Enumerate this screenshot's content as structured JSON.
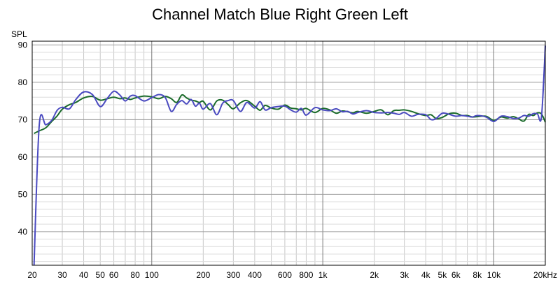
{
  "chart_data": {
    "type": "line",
    "title": "Channel Match Blue Right Green Left",
    "ylabel": "SPL",
    "xlabel": "",
    "xscale": "log",
    "xlim": [
      20,
      20000
    ],
    "ylim": [
      31,
      91
    ],
    "grid": true,
    "legend": "none",
    "y_ticks": [
      {
        "value": 90,
        "label": "90"
      },
      {
        "value": 80,
        "label": "80"
      },
      {
        "value": 70,
        "label": "70"
      },
      {
        "value": 60,
        "label": "60"
      },
      {
        "value": 50,
        "label": "50"
      },
      {
        "value": 40,
        "label": "40"
      }
    ],
    "x_ticks": [
      {
        "value": 20,
        "label": "20"
      },
      {
        "value": 30,
        "label": "30"
      },
      {
        "value": 40,
        "label": "40"
      },
      {
        "value": 50,
        "label": "50"
      },
      {
        "value": 60,
        "label": "60"
      },
      {
        "value": 80,
        "label": "80"
      },
      {
        "value": 100,
        "label": "100"
      },
      {
        "value": 200,
        "label": "200"
      },
      {
        "value": 300,
        "label": "300"
      },
      {
        "value": 400,
        "label": "400"
      },
      {
        "value": 600,
        "label": "600"
      },
      {
        "value": 800,
        "label": "800"
      },
      {
        "value": 1000,
        "label": "1k"
      },
      {
        "value": 2000,
        "label": "2k"
      },
      {
        "value": 3000,
        "label": "3k"
      },
      {
        "value": 4000,
        "label": "4k"
      },
      {
        "value": 5000,
        "label": "5k"
      },
      {
        "value": 6000,
        "label": "6k"
      },
      {
        "value": 8000,
        "label": "8k"
      },
      {
        "value": 10000,
        "label": "10k"
      },
      {
        "value": 20000,
        "label": "20kHz"
      }
    ],
    "series": [
      {
        "color": "#1a6b2a",
        "x": [
          20.5,
          22,
          24,
          26,
          28,
          30,
          33,
          36,
          40,
          45,
          50,
          55,
          60,
          65,
          70,
          75,
          80,
          90,
          100,
          110,
          120,
          130,
          140,
          150,
          160,
          170,
          180,
          190,
          200,
          220,
          240,
          260,
          280,
          300,
          330,
          360,
          400,
          430,
          460,
          500,
          550,
          600,
          650,
          700,
          750,
          800,
          900,
          1000,
          1100,
          1200,
          1300,
          1400,
          1500,
          1600,
          1800,
          2000,
          2200,
          2400,
          2600,
          2800,
          3000,
          3300,
          3600,
          4000,
          4300,
          4600,
          5000,
          5500,
          6000,
          6500,
          7000,
          7500,
          8000,
          9000,
          10000,
          11000,
          12000,
          13000,
          14000,
          15000,
          16000,
          17000,
          18000,
          19000,
          20000
        ],
        "y": [
          66.3,
          67,
          67.8,
          69.5,
          71,
          72.8,
          74,
          74.6,
          75.8,
          76.2,
          75.2,
          75.6,
          76,
          75.6,
          75.8,
          75.4,
          75.8,
          76.3,
          76.1,
          75.6,
          76.2,
          75.6,
          74.6,
          76.6,
          75.8,
          75.2,
          75,
          74.6,
          74.9,
          72.6,
          75,
          75.2,
          74,
          72.9,
          74.5,
          75.1,
          73.6,
          72.5,
          73.8,
          73.1,
          72.8,
          73.9,
          73.1,
          72.9,
          72.6,
          73,
          71.9,
          73,
          72.6,
          71.7,
          72.3,
          72.1,
          71.8,
          72.2,
          71.7,
          72.2,
          72.6,
          71.3,
          72.4,
          72.5,
          72.6,
          72.2,
          71.6,
          71.1,
          71.3,
          70.3,
          70.6,
          71.6,
          71.7,
          71.1,
          71.1,
          70.7,
          70.8,
          70.9,
          69.8,
          70.7,
          70.4,
          70.8,
          70.2,
          69.6,
          71.4,
          71.1,
          71.8,
          71.5,
          69.3
        ]
      },
      {
        "color": "#4a4ac0",
        "x": [
          20.5,
          22,
          24,
          26,
          28,
          30,
          33,
          36,
          40,
          45,
          50,
          55,
          60,
          65,
          70,
          75,
          80,
          90,
          100,
          110,
          120,
          130,
          140,
          150,
          160,
          170,
          180,
          190,
          200,
          220,
          240,
          260,
          280,
          300,
          330,
          360,
          400,
          430,
          460,
          500,
          550,
          600,
          650,
          700,
          750,
          800,
          900,
          1000,
          1100,
          1200,
          1300,
          1400,
          1500,
          1600,
          1800,
          2000,
          2200,
          2400,
          2600,
          2800,
          3000,
          3300,
          3600,
          4000,
          4300,
          4600,
          5000,
          5500,
          6000,
          6500,
          7000,
          7500,
          8000,
          9000,
          10000,
          11000,
          12000,
          13000,
          14000,
          15000,
          16000,
          17000,
          18000,
          19000,
          20000
        ],
        "y": [
          31,
          68.6,
          68.6,
          69.8,
          72.5,
          73.3,
          72.9,
          75.4,
          77.4,
          76.7,
          73.5,
          75.7,
          77.6,
          76.6,
          75,
          76.3,
          76.4,
          75,
          75.9,
          76.7,
          75.9,
          72.2,
          74.1,
          75.1,
          74.2,
          75.4,
          73.6,
          74.4,
          72.8,
          74.3,
          71.3,
          74.4,
          75.1,
          75.1,
          72.2,
          74.6,
          73.1,
          74.8,
          72.6,
          73.2,
          73.5,
          73.6,
          72.6,
          72,
          73,
          71.2,
          73.2,
          72.6,
          72.4,
          72.9,
          72.1,
          72.2,
          71.5,
          71.9,
          72.4,
          71.9,
          71.8,
          71.9,
          71.7,
          71.4,
          71.9,
          70.9,
          71.4,
          71.3,
          70,
          70.3,
          71.7,
          71.4,
          70.9,
          71.1,
          70.9,
          70.7,
          71.1,
          70.7,
          69.5,
          70.9,
          70.8,
          70.3,
          70.4,
          71.1,
          70.9,
          71.6,
          71.5,
          70.8,
          89.8
        ]
      }
    ]
  }
}
